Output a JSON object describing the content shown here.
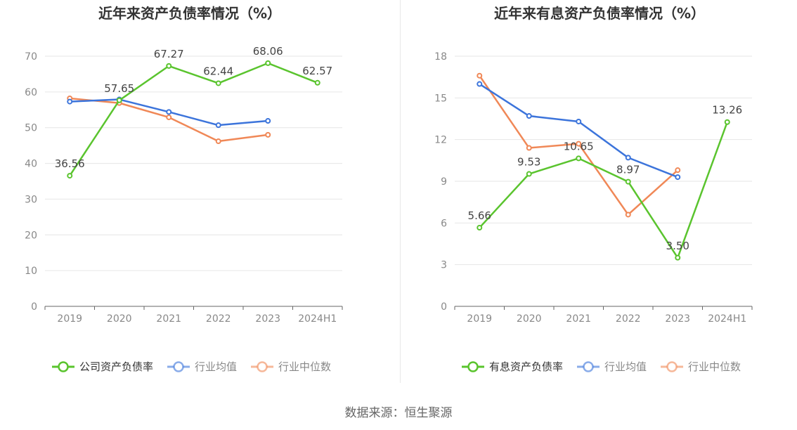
{
  "chart_data": [
    {
      "type": "line",
      "title": "近年来资产负债率情况（%）",
      "categories": [
        "2019",
        "2020",
        "2021",
        "2022",
        "2023",
        "2024H1"
      ],
      "ylim": [
        0,
        70
      ],
      "yticks": [
        0,
        10,
        20,
        30,
        40,
        50,
        60,
        70
      ],
      "series": [
        {
          "name": "公司资产负债率",
          "color": "#5ac42e",
          "values": [
            36.56,
            57.65,
            67.27,
            62.44,
            68.06,
            62.57
          ],
          "labels": [
            "36.56",
            "57.65",
            "67.27",
            "62.44",
            "68.06",
            "62.57"
          ]
        },
        {
          "name": "行业均值",
          "color": "#3c74db",
          "values": [
            57.3,
            57.9,
            54.4,
            50.7,
            51.9,
            null
          ]
        },
        {
          "name": "行业中位数",
          "color": "#f08857",
          "values": [
            58.2,
            56.9,
            52.9,
            46.2,
            48.0,
            null
          ]
        }
      ]
    },
    {
      "type": "line",
      "title": "近年来有息资产负债率情况（%）",
      "categories": [
        "2019",
        "2020",
        "2021",
        "2022",
        "2023",
        "2024H1"
      ],
      "ylim": [
        0,
        18
      ],
      "yticks": [
        0,
        3,
        6,
        9,
        12,
        15,
        18
      ],
      "series": [
        {
          "name": "有息资产负债率",
          "color": "#5ac42e",
          "values": [
            5.66,
            9.53,
            10.65,
            8.97,
            3.5,
            13.26
          ],
          "labels": [
            "5.66",
            "9.53",
            "10.65",
            "8.97",
            "3.50",
            "13.26"
          ]
        },
        {
          "name": "行业均值",
          "color": "#3c74db",
          "values": [
            16.0,
            13.7,
            13.3,
            10.7,
            9.3,
            null
          ]
        },
        {
          "name": "行业中位数",
          "color": "#f08857",
          "values": [
            16.6,
            11.4,
            11.7,
            6.6,
            9.8,
            null
          ]
        }
      ]
    }
  ],
  "footer": {
    "source": "数据来源：恒生聚源"
  }
}
